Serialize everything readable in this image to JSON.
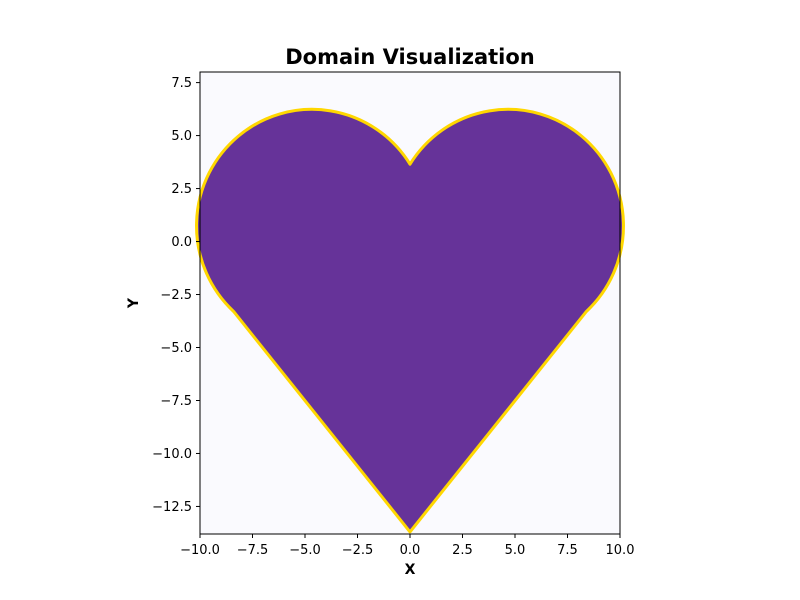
{
  "chart_data": {
    "type": "area",
    "title": "Domain Visualization",
    "xlabel": "X",
    "ylabel": "Y",
    "xlim": [
      -10,
      10
    ],
    "ylim": [
      -13.8,
      8.0
    ],
    "x_ticks": [
      -10.0,
      -7.5,
      -5.0,
      -2.5,
      0.0,
      2.5,
      5.0,
      7.5,
      10.0
    ],
    "x_tick_labels": [
      "−10.0",
      "−7.5",
      "−5.0",
      "−2.5",
      "0.0",
      "2.5",
      "5.0",
      "7.5",
      "10.0"
    ],
    "y_ticks": [
      7.5,
      5.0,
      2.5,
      0.0,
      -2.5,
      -5.0,
      -7.5,
      -10.0,
      -12.5
    ],
    "y_tick_labels": [
      "7.5",
      "5.0",
      "2.5",
      "0.0",
      "−2.5",
      "−5.0",
      "−7.5",
      "−10.0",
      "−12.5"
    ],
    "grid": false,
    "shape": {
      "left_lobe_center": [
        -4.1,
        0.0
      ],
      "right_lobe_center": [
        4.1,
        0.0
      ],
      "lobe_radius": 5.5,
      "top_notch": [
        0.0,
        3.65
      ],
      "bottom_tip": [
        0.0,
        -13.7
      ],
      "left_tangent": [
        -8.4,
        -3.3
      ],
      "right_tangent": [
        8.4,
        -3.3
      ]
    },
    "colors": {
      "fill": "#663399",
      "edge": "#ffd700",
      "axes_background": "#fafafe"
    }
  }
}
